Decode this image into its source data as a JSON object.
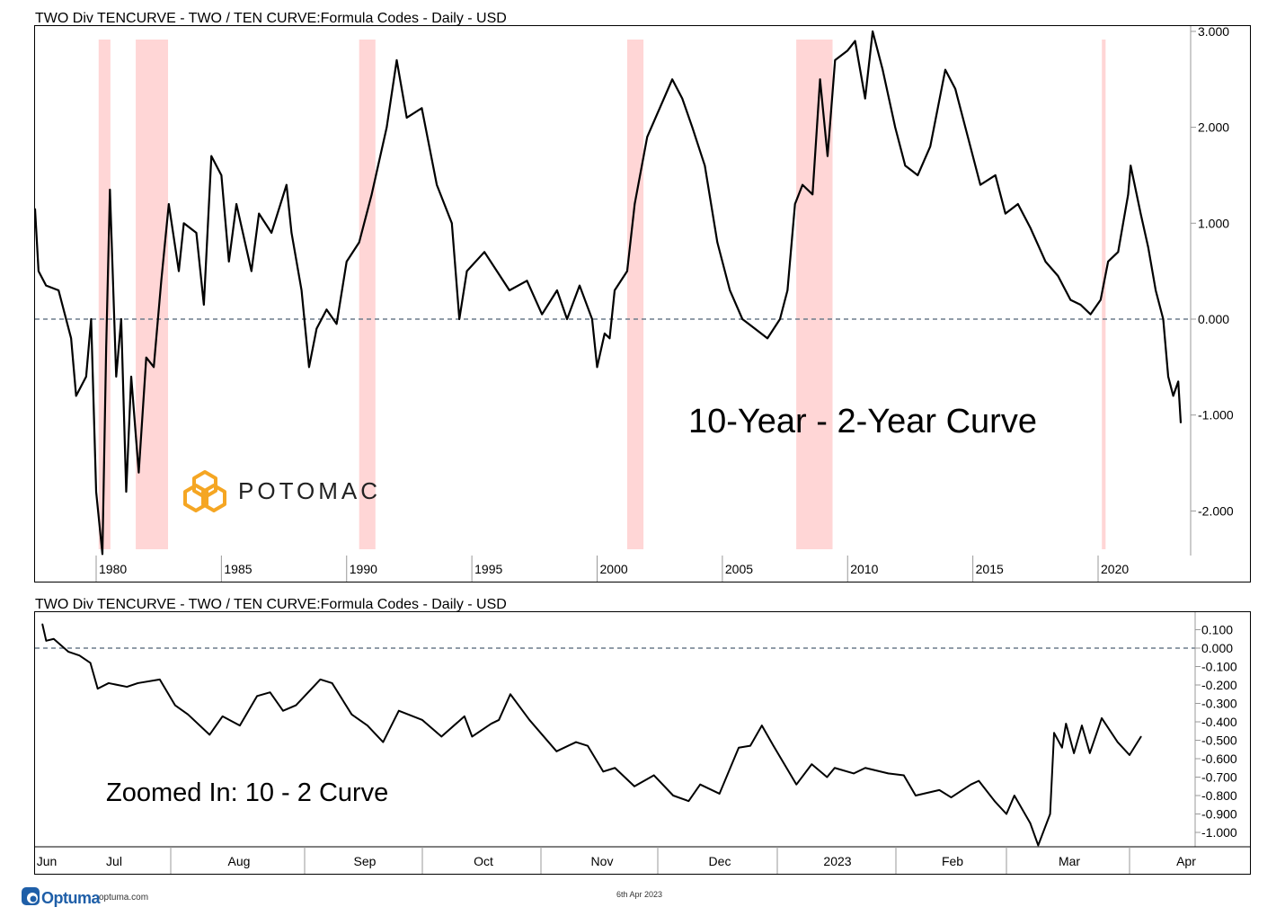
{
  "colors": {
    "line": "#000000",
    "recession": "#ffd6d6",
    "zero_line": "#6b7b8c",
    "logo": "#f5a623",
    "optuma": "#1f5fa8"
  },
  "chart_data": [
    {
      "type": "line",
      "title": "TWO Div TENCURVE - TWO / TEN CURVE:Formula Codes - Daily - USD",
      "annotation": "10-Year - 2-Year Curve",
      "xlabel": "",
      "ylabel": "",
      "xlim": [
        1977.56,
        2023.7
      ],
      "ylim": [
        -2.5,
        3.05
      ],
      "x_ticks": [
        "1980",
        "1985",
        "1990",
        "1995",
        "2000",
        "2005",
        "2010",
        "2015",
        "2020"
      ],
      "y_ticks": [
        "3.000",
        "2.000",
        "1.000",
        "0.000",
        "-1.000",
        "-2.000"
      ],
      "reference_line": 0,
      "shaded_periods": [
        [
          1980.1,
          1980.57
        ],
        [
          1981.58,
          1982.87
        ],
        [
          1990.5,
          1991.15
        ],
        [
          2001.2,
          2001.85
        ],
        [
          2007.95,
          2009.4
        ],
        [
          2020.15,
          2020.3
        ]
      ],
      "x": [
        1977.56,
        1977.7,
        1978.0,
        1978.5,
        1979.0,
        1979.2,
        1979.6,
        1979.8,
        1980.0,
        1980.25,
        1980.4,
        1980.55,
        1980.8,
        1981.0,
        1981.2,
        1981.4,
        1981.7,
        1982.0,
        1982.3,
        1982.6,
        1982.9,
        1983.3,
        1983.5,
        1984.0,
        1984.3,
        1984.6,
        1985.0,
        1985.3,
        1985.6,
        1986.2,
        1986.5,
        1987.0,
        1987.6,
        1987.8,
        1988.2,
        1988.5,
        1988.8,
        1989.2,
        1989.6,
        1990.0,
        1990.5,
        1991.0,
        1991.6,
        1992.0,
        1992.4,
        1993.0,
        1993.6,
        1994.2,
        1994.5,
        1994.8,
        1995.5,
        1996.0,
        1996.5,
        1997.2,
        1997.8,
        1998.4,
        1998.8,
        1999.3,
        1999.8,
        2000.0,
        2000.3,
        2000.5,
        2000.7,
        2001.2,
        2001.5,
        2002.0,
        2002.5,
        2003.0,
        2003.4,
        2003.8,
        2004.3,
        2004.8,
        2005.3,
        2005.8,
        2006.3,
        2006.8,
        2007.3,
        2007.6,
        2007.9,
        2008.2,
        2008.6,
        2008.9,
        2009.2,
        2009.5,
        2010.0,
        2010.3,
        2010.7,
        2011.0,
        2011.4,
        2011.9,
        2012.3,
        2012.8,
        2013.3,
        2013.9,
        2014.3,
        2014.8,
        2015.3,
        2015.9,
        2016.3,
        2016.8,
        2017.3,
        2017.9,
        2018.4,
        2018.9,
        2019.3,
        2019.7,
        2020.1,
        2020.4,
        2020.8,
        2021.2,
        2021.3,
        2021.7,
        2022.0,
        2022.3,
        2022.6,
        2022.8,
        2023.0,
        2023.2,
        2023.3
      ],
      "y": [
        1.15,
        0.5,
        0.35,
        0.3,
        -0.2,
        -0.8,
        -0.6,
        0.0,
        -1.8,
        -2.45,
        -0.3,
        1.35,
        -0.6,
        0.0,
        -1.8,
        -0.6,
        -1.6,
        -0.4,
        -0.5,
        0.4,
        1.2,
        0.5,
        1.0,
        0.9,
        0.15,
        1.7,
        1.5,
        0.6,
        1.2,
        0.5,
        1.1,
        0.9,
        1.4,
        0.9,
        0.3,
        -0.5,
        -0.1,
        0.1,
        -0.05,
        0.6,
        0.8,
        1.3,
        2.0,
        2.7,
        2.1,
        2.2,
        1.4,
        1.0,
        0.0,
        0.5,
        0.7,
        0.5,
        0.3,
        0.4,
        0.05,
        0.3,
        0.0,
        0.35,
        0.0,
        -0.5,
        -0.15,
        -0.2,
        0.3,
        0.5,
        1.2,
        1.9,
        2.2,
        2.5,
        2.3,
        2.0,
        1.6,
        0.8,
        0.3,
        0.0,
        -0.1,
        -0.2,
        0.0,
        0.3,
        1.2,
        1.4,
        1.3,
        2.5,
        1.7,
        2.7,
        2.8,
        2.9,
        2.3,
        3.0,
        2.6,
        2.0,
        1.6,
        1.5,
        1.8,
        2.6,
        2.4,
        1.9,
        1.4,
        1.5,
        1.1,
        1.2,
        0.95,
        0.6,
        0.45,
        0.2,
        0.15,
        0.05,
        0.2,
        0.6,
        0.7,
        1.3,
        1.6,
        1.1,
        0.75,
        0.3,
        0.0,
        -0.6,
        -0.8,
        -0.65,
        -1.08
      ]
    },
    {
      "type": "line",
      "title": "TWO Div TENCURVE - TWO / TEN CURVE:Formula Codes - Daily - USD",
      "annotation": "Zoomed In: 10 - 2 Curve",
      "xlabel": "",
      "ylabel": "",
      "ylim": [
        -1.1,
        0.2
      ],
      "x_ticks": [
        "Jun",
        "Jul",
        "Aug",
        "Sep",
        "Oct",
        "Nov",
        "Dec",
        "2023",
        "Feb",
        "Mar",
        "Apr"
      ],
      "y_ticks": [
        "0.100",
        "0.000",
        "-0.100",
        "-0.200",
        "-0.300",
        "-0.400",
        "-0.500",
        "-0.600",
        "-0.700",
        "-0.800",
        "-0.900",
        "-1.000"
      ],
      "reference_line": 0,
      "x": [
        "2022-06-27",
        "2022-06-28",
        "2022-06-30",
        "2022-07-04",
        "2022-07-07",
        "2022-07-10",
        "2022-07-12",
        "2022-07-15",
        "2022-07-20",
        "2022-07-23",
        "2022-07-29",
        "2022-08-02",
        "2022-08-05",
        "2022-08-10",
        "2022-08-13",
        "2022-08-17",
        "2022-08-21",
        "2022-08-24",
        "2022-08-27",
        "2022-08-30",
        "2022-09-05",
        "2022-09-08",
        "2022-09-13",
        "2022-09-17",
        "2022-09-21",
        "2022-09-25",
        "2022-10-01",
        "2022-10-06",
        "2022-10-12",
        "2022-10-14",
        "2022-10-19",
        "2022-10-21",
        "2022-10-24",
        "2022-10-29",
        "2022-11-05",
        "2022-11-10",
        "2022-11-13",
        "2022-11-17",
        "2022-11-20",
        "2022-11-25",
        "2022-11-30",
        "2022-12-05",
        "2022-12-09",
        "2022-12-12",
        "2022-12-17",
        "2022-12-22",
        "2022-12-25",
        "2022-12-28",
        "2022-12-31",
        "2023-01-06",
        "2023-01-10",
        "2023-01-14",
        "2023-01-16",
        "2023-01-21",
        "2023-01-24",
        "2023-01-30",
        "2023-02-03",
        "2023-02-06",
        "2023-02-12",
        "2023-02-15",
        "2023-02-20",
        "2023-02-22",
        "2023-02-26",
        "2023-03-01",
        "2023-03-03",
        "2023-03-07",
        "2023-03-09",
        "2023-03-12",
        "2023-03-13",
        "2023-03-15",
        "2023-03-16",
        "2023-03-18",
        "2023-03-20",
        "2023-03-22",
        "2023-03-25",
        "2023-03-29",
        "2023-04-01",
        "2023-04-04"
      ],
      "y": [
        0.13,
        0.04,
        0.05,
        -0.02,
        -0.04,
        -0.08,
        -0.22,
        -0.19,
        -0.21,
        -0.19,
        -0.17,
        -0.31,
        -0.36,
        -0.47,
        -0.37,
        -0.42,
        -0.26,
        -0.24,
        -0.34,
        -0.31,
        -0.17,
        -0.19,
        -0.36,
        -0.42,
        -0.51,
        -0.34,
        -0.39,
        -0.48,
        -0.37,
        -0.48,
        -0.41,
        -0.39,
        -0.25,
        -0.39,
        -0.56,
        -0.51,
        -0.53,
        -0.67,
        -0.65,
        -0.75,
        -0.69,
        -0.8,
        -0.83,
        -0.74,
        -0.79,
        -0.54,
        -0.53,
        -0.42,
        -0.53,
        -0.74,
        -0.63,
        -0.7,
        -0.65,
        -0.68,
        -0.65,
        -0.68,
        -0.69,
        -0.8,
        -0.77,
        -0.81,
        -0.74,
        -0.72,
        -0.83,
        -0.9,
        -0.8,
        -0.95,
        -1.07,
        -0.9,
        -0.46,
        -0.54,
        -0.41,
        -0.57,
        -0.42,
        -0.57,
        -0.38,
        -0.51,
        -0.58,
        -0.48
      ]
    }
  ],
  "logo": {
    "text": "POTOMAC"
  },
  "footer": {
    "brand": "Optuma",
    "site": "optuma.com",
    "date": "6th Apr 2023"
  }
}
